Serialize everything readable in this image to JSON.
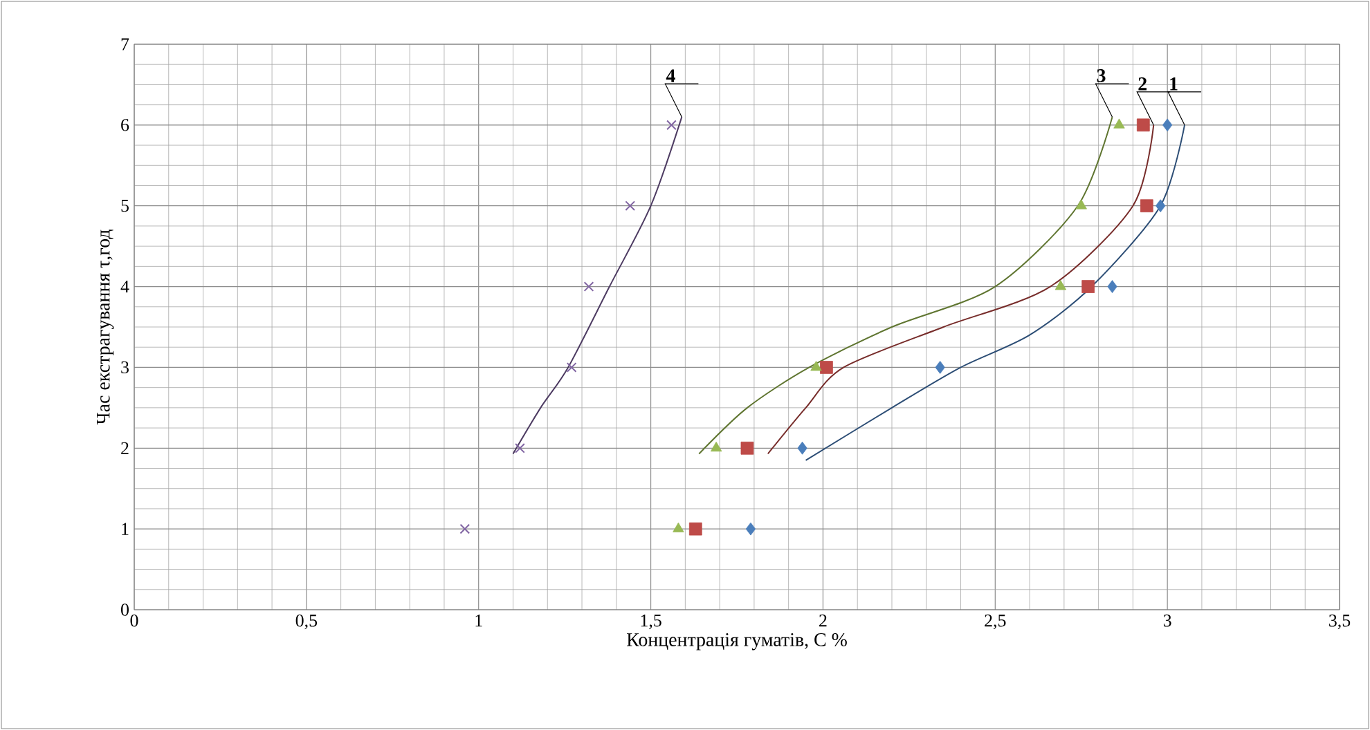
{
  "chart_data": {
    "type": "scatter",
    "xlabel": "Концентрація гуматів, С %",
    "ylabel": "Час екстрагування τ,год",
    "xlim": [
      0,
      3.5
    ],
    "ylim": [
      0,
      7
    ],
    "xticks": [
      0,
      {
        "value": 0.5,
        "label": "0,5"
      },
      1,
      {
        "value": 1.5,
        "label": "1,5"
      },
      2,
      {
        "value": 2.5,
        "label": "2,5"
      },
      3,
      {
        "value": 3.5,
        "label": "3,5"
      }
    ],
    "yticks": [
      0,
      1,
      2,
      3,
      4,
      5,
      6,
      7
    ],
    "grid": true,
    "series": [
      {
        "marker": "diamond",
        "color": "#4a7ebb",
        "x": [
          1.79,
          1.94,
          2.34,
          2.84,
          2.98,
          3.0
        ],
        "values": [
          1,
          2,
          3,
          4,
          5,
          6
        ]
      },
      {
        "marker": "square",
        "color": "#be4b48",
        "x": [
          1.63,
          1.78,
          2.01,
          2.77,
          2.94,
          2.93
        ],
        "values": [
          1,
          2,
          3,
          4,
          5,
          6
        ]
      },
      {
        "marker": "triangle",
        "color": "#98b954",
        "x": [
          1.58,
          1.69,
          1.98,
          2.69,
          2.75,
          2.86
        ],
        "values": [
          1,
          2,
          3,
          4,
          5,
          6
        ]
      },
      {
        "marker": "cross",
        "color": "#8064a2",
        "x": [
          0.96,
          1.12,
          1.27,
          1.32,
          1.44,
          1.56
        ],
        "values": [
          1,
          2,
          3,
          4,
          5,
          6
        ]
      },
      {
        "type": "line",
        "color": "#2c4d75",
        "x": [
          1.95,
          2.2,
          2.4,
          2.6,
          2.78,
          2.98,
          3.05
        ],
        "values": [
          1.85,
          2.5,
          3.0,
          3.4,
          4.0,
          5.0,
          6.0
        ]
      },
      {
        "type": "line",
        "color": "#772c2a",
        "x": [
          1.84,
          1.95,
          2.06,
          2.35,
          2.66,
          2.9,
          2.96
        ],
        "values": [
          1.93,
          2.5,
          3.0,
          3.5,
          4.0,
          5.0,
          6.0
        ]
      },
      {
        "type": "line",
        "color": "#5f7530",
        "x": [
          1.64,
          1.78,
          1.96,
          2.2,
          2.5,
          2.74,
          2.84
        ],
        "values": [
          1.93,
          2.5,
          3.0,
          3.5,
          4.0,
          5.0,
          6.1
        ]
      },
      {
        "type": "line",
        "color": "#4d3b62",
        "x": [
          1.1,
          1.18,
          1.26,
          1.38,
          1.5,
          1.59
        ],
        "values": [
          1.93,
          2.5,
          3.0,
          4.0,
          5.0,
          6.1
        ]
      }
    ],
    "annotations": [
      {
        "text": "1",
        "x": 3.05,
        "y": 6.0
      },
      {
        "text": "2",
        "x": 2.96,
        "y": 6.0
      },
      {
        "text": "3",
        "x": 2.84,
        "y": 6.1
      },
      {
        "text": "4",
        "x": 1.59,
        "y": 6.1
      }
    ]
  }
}
